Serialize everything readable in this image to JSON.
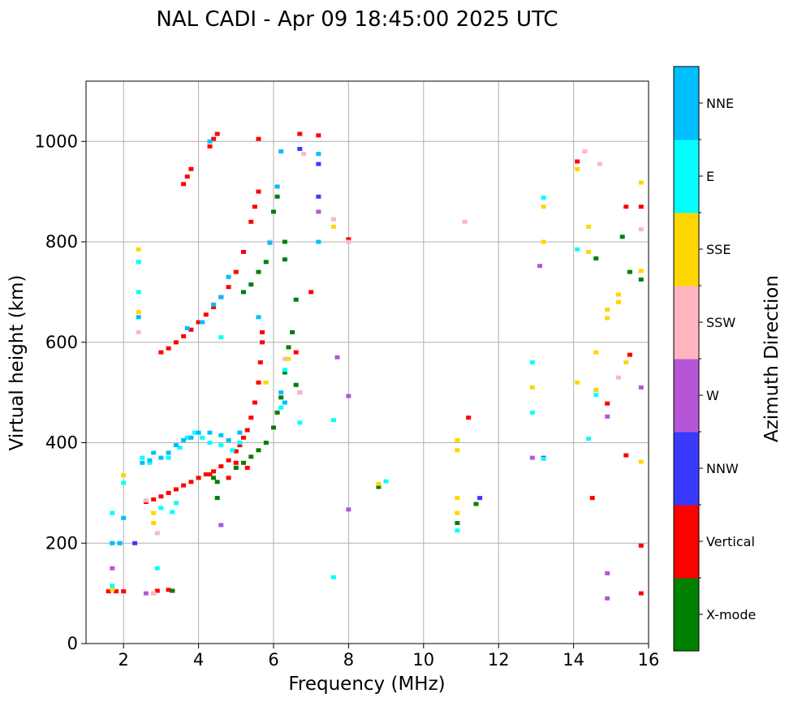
{
  "chart_data": {
    "type": "scatter",
    "title": "NAL CADI - Apr 09 18:45:00 2025 UTC",
    "xlabel": "Frequency (MHz)",
    "ylabel": "Virtual height (km)",
    "xlim": [
      1,
      16
    ],
    "ylim": [
      0,
      1120
    ],
    "xticks": [
      2,
      4,
      6,
      8,
      10,
      12,
      14,
      16
    ],
    "yticks": [
      0,
      200,
      400,
      600,
      800,
      1000
    ],
    "grid": true,
    "colorbar": {
      "label": "Azimuth Direction",
      "categories": [
        {
          "name": "X-mode",
          "color": "#008000"
        },
        {
          "name": "Vertical",
          "color": "#ff0000"
        },
        {
          "name": "NNW",
          "color": "#3a3aff"
        },
        {
          "name": "W",
          "color": "#b656d6"
        },
        {
          "name": "SSW",
          "color": "#ffb6c1"
        },
        {
          "name": "SSE",
          "color": "#ffd700"
        },
        {
          "name": "E",
          "color": "#00ffff"
        },
        {
          "name": "NNE",
          "color": "#00bfff"
        }
      ]
    },
    "series": [
      {
        "name": "Vertical",
        "points": [
          [
            1.6,
            104
          ],
          [
            1.8,
            104
          ],
          [
            2.0,
            104
          ],
          [
            2.6,
            282
          ],
          [
            2.8,
            287
          ],
          [
            3.0,
            293
          ],
          [
            3.2,
            300
          ],
          [
            3.4,
            307
          ],
          [
            3.6,
            315
          ],
          [
            3.8,
            322
          ],
          [
            4.0,
            330
          ],
          [
            4.2,
            337
          ],
          [
            4.4,
            343
          ],
          [
            4.6,
            353
          ],
          [
            4.8,
            365
          ],
          [
            5.0,
            383
          ],
          [
            5.1,
            395
          ],
          [
            5.2,
            410
          ],
          [
            5.3,
            425
          ],
          [
            5.4,
            450
          ],
          [
            5.5,
            480
          ],
          [
            5.6,
            520
          ],
          [
            5.65,
            560
          ],
          [
            5.7,
            600
          ],
          [
            2.9,
            105
          ],
          [
            3.2,
            107
          ],
          [
            4.3,
            337
          ],
          [
            3.3,
            105
          ],
          [
            4.8,
            330
          ],
          [
            5.0,
            360
          ],
          [
            5.3,
            350
          ],
          [
            3.0,
            580
          ],
          [
            3.2,
            588
          ],
          [
            3.4,
            600
          ],
          [
            3.6,
            612
          ],
          [
            3.8,
            625
          ],
          [
            4.0,
            640
          ],
          [
            4.2,
            655
          ],
          [
            4.4,
            670
          ],
          [
            4.6,
            690
          ],
          [
            4.8,
            710
          ],
          [
            5.0,
            740
          ],
          [
            5.2,
            780
          ],
          [
            5.4,
            840
          ],
          [
            5.5,
            870
          ],
          [
            5.6,
            900
          ],
          [
            3.6,
            915
          ],
          [
            3.7,
            930
          ],
          [
            3.8,
            945
          ],
          [
            4.3,
            990
          ],
          [
            4.4,
            1005
          ],
          [
            4.5,
            1015
          ],
          [
            5.6,
            1005
          ],
          [
            6.7,
            1015
          ],
          [
            7.2,
            1012
          ],
          [
            5.7,
            620
          ],
          [
            6.6,
            580
          ],
          [
            7.0,
            700
          ],
          [
            8.0,
            805
          ],
          [
            11.2,
            450
          ],
          [
            14.1,
            960
          ],
          [
            14.5,
            290
          ],
          [
            14.9,
            478
          ],
          [
            15.4,
            870
          ],
          [
            15.8,
            870
          ],
          [
            15.4,
            375
          ],
          [
            15.5,
            575
          ],
          [
            15.8,
            195
          ],
          [
            15.8,
            100
          ]
        ]
      },
      {
        "name": "X-mode",
        "points": [
          [
            3.3,
            105
          ],
          [
            4.4,
            330
          ],
          [
            4.5,
            322
          ],
          [
            5.0,
            350
          ],
          [
            5.2,
            360
          ],
          [
            5.4,
            372
          ],
          [
            5.6,
            385
          ],
          [
            5.8,
            400
          ],
          [
            6.0,
            430
          ],
          [
            6.1,
            460
          ],
          [
            6.2,
            490
          ],
          [
            6.3,
            540
          ],
          [
            6.4,
            590
          ],
          [
            6.5,
            620
          ],
          [
            5.2,
            700
          ],
          [
            5.4,
            715
          ],
          [
            5.6,
            740
          ],
          [
            5.8,
            760
          ],
          [
            6.0,
            860
          ],
          [
            6.1,
            890
          ],
          [
            6.3,
            800
          ],
          [
            6.3,
            765
          ],
          [
            6.6,
            685
          ],
          [
            6.6,
            515
          ],
          [
            4.5,
            290
          ],
          [
            8.8,
            312
          ],
          [
            11.4,
            278
          ],
          [
            10.9,
            240
          ],
          [
            14.6,
            767
          ],
          [
            15.3,
            810
          ],
          [
            15.5,
            740
          ],
          [
            15.8,
            725
          ]
        ]
      },
      {
        "name": "NNW",
        "points": [
          [
            7.2,
            955
          ],
          [
            7.2,
            890
          ],
          [
            11.5,
            290
          ],
          [
            13.2,
            370
          ],
          [
            6.7,
            985
          ],
          [
            2.3,
            200
          ]
        ]
      },
      {
        "name": "W",
        "points": [
          [
            1.7,
            150
          ],
          [
            2.6,
            100
          ],
          [
            2.8,
            100
          ],
          [
            4.6,
            236
          ],
          [
            7.2,
            860
          ],
          [
            7.7,
            570
          ],
          [
            8.0,
            493
          ],
          [
            8.0,
            267
          ],
          [
            13.1,
            752
          ],
          [
            12.9,
            370
          ],
          [
            14.9,
            452
          ],
          [
            14.9,
            140
          ],
          [
            14.9,
            90
          ],
          [
            15.8,
            510
          ],
          [
            6.7,
            500
          ]
        ]
      },
      {
        "name": "SSW",
        "points": [
          [
            2.4,
            620
          ],
          [
            2.6,
            285
          ],
          [
            2.8,
            100
          ],
          [
            2.9,
            220
          ],
          [
            6.7,
            500
          ],
          [
            6.8,
            975
          ],
          [
            7.6,
            845
          ],
          [
            8.0,
            800
          ],
          [
            11.1,
            840
          ],
          [
            14.3,
            980
          ],
          [
            14.7,
            955
          ],
          [
            15.2,
            530
          ],
          [
            15.8,
            825
          ],
          [
            6.3,
            567
          ],
          [
            5.9,
            800
          ]
        ]
      },
      {
        "name": "SSE",
        "points": [
          [
            1.7,
            108
          ],
          [
            2.0,
            335
          ],
          [
            2.4,
            785
          ],
          [
            2.4,
            660
          ],
          [
            2.8,
            260
          ],
          [
            2.8,
            240
          ],
          [
            5.8,
            520
          ],
          [
            6.4,
            567
          ],
          [
            7.6,
            830
          ],
          [
            8.8,
            318
          ],
          [
            10.9,
            405
          ],
          [
            10.9,
            385
          ],
          [
            10.9,
            290
          ],
          [
            10.9,
            260
          ],
          [
            12.9,
            510
          ],
          [
            13.2,
            870
          ],
          [
            13.2,
            800
          ],
          [
            14.1,
            945
          ],
          [
            14.1,
            520
          ],
          [
            14.4,
            830
          ],
          [
            14.4,
            780
          ],
          [
            14.6,
            580
          ],
          [
            14.6,
            505
          ],
          [
            14.9,
            665
          ],
          [
            14.9,
            648
          ],
          [
            15.2,
            695
          ],
          [
            15.2,
            680
          ],
          [
            15.4,
            560
          ],
          [
            15.8,
            918
          ],
          [
            15.8,
            742
          ],
          [
            15.8,
            362
          ]
        ]
      },
      {
        "name": "E",
        "points": [
          [
            1.7,
            115
          ],
          [
            1.7,
            200
          ],
          [
            1.7,
            260
          ],
          [
            1.9,
            200
          ],
          [
            2.0,
            320
          ],
          [
            2.4,
            700
          ],
          [
            2.4,
            760
          ],
          [
            2.5,
            370
          ],
          [
            2.7,
            360
          ],
          [
            2.9,
            150
          ],
          [
            3.0,
            270
          ],
          [
            3.3,
            262
          ],
          [
            3.4,
            280
          ],
          [
            3.2,
            370
          ],
          [
            3.5,
            390
          ],
          [
            3.7,
            410
          ],
          [
            3.9,
            420
          ],
          [
            4.1,
            410
          ],
          [
            4.3,
            400
          ],
          [
            4.6,
            395
          ],
          [
            4.9,
            385
          ],
          [
            5.1,
            400
          ],
          [
            6.2,
            470
          ],
          [
            6.3,
            545
          ],
          [
            6.7,
            440
          ],
          [
            7.6,
            445
          ],
          [
            7.6,
            132
          ],
          [
            9.0,
            323
          ],
          [
            10.9,
            225
          ],
          [
            12.9,
            560
          ],
          [
            12.9,
            460
          ],
          [
            13.2,
            888
          ],
          [
            13.2,
            368
          ],
          [
            14.1,
            785
          ],
          [
            14.6,
            495
          ],
          [
            14.4,
            408
          ],
          [
            4.6,
            610
          ]
        ]
      },
      {
        "name": "NNE",
        "points": [
          [
            1.7,
            200
          ],
          [
            1.9,
            200
          ],
          [
            2.0,
            250
          ],
          [
            2.4,
            650
          ],
          [
            2.5,
            360
          ],
          [
            2.7,
            365
          ],
          [
            2.8,
            380
          ],
          [
            3.0,
            370
          ],
          [
            3.2,
            380
          ],
          [
            3.4,
            395
          ],
          [
            3.6,
            405
          ],
          [
            3.8,
            410
          ],
          [
            4.0,
            420
          ],
          [
            4.3,
            420
          ],
          [
            4.6,
            415
          ],
          [
            4.8,
            405
          ],
          [
            5.1,
            420
          ],
          [
            3.7,
            628
          ],
          [
            4.1,
            640
          ],
          [
            4.4,
            675
          ],
          [
            4.6,
            690
          ],
          [
            4.8,
            730
          ],
          [
            5.6,
            650
          ],
          [
            6.1,
            910
          ],
          [
            6.2,
            980
          ],
          [
            6.2,
            500
          ],
          [
            6.3,
            480
          ],
          [
            5.9,
            798
          ],
          [
            7.2,
            800
          ],
          [
            4.3,
            1000
          ],
          [
            7.2,
            975
          ]
        ]
      }
    ]
  }
}
